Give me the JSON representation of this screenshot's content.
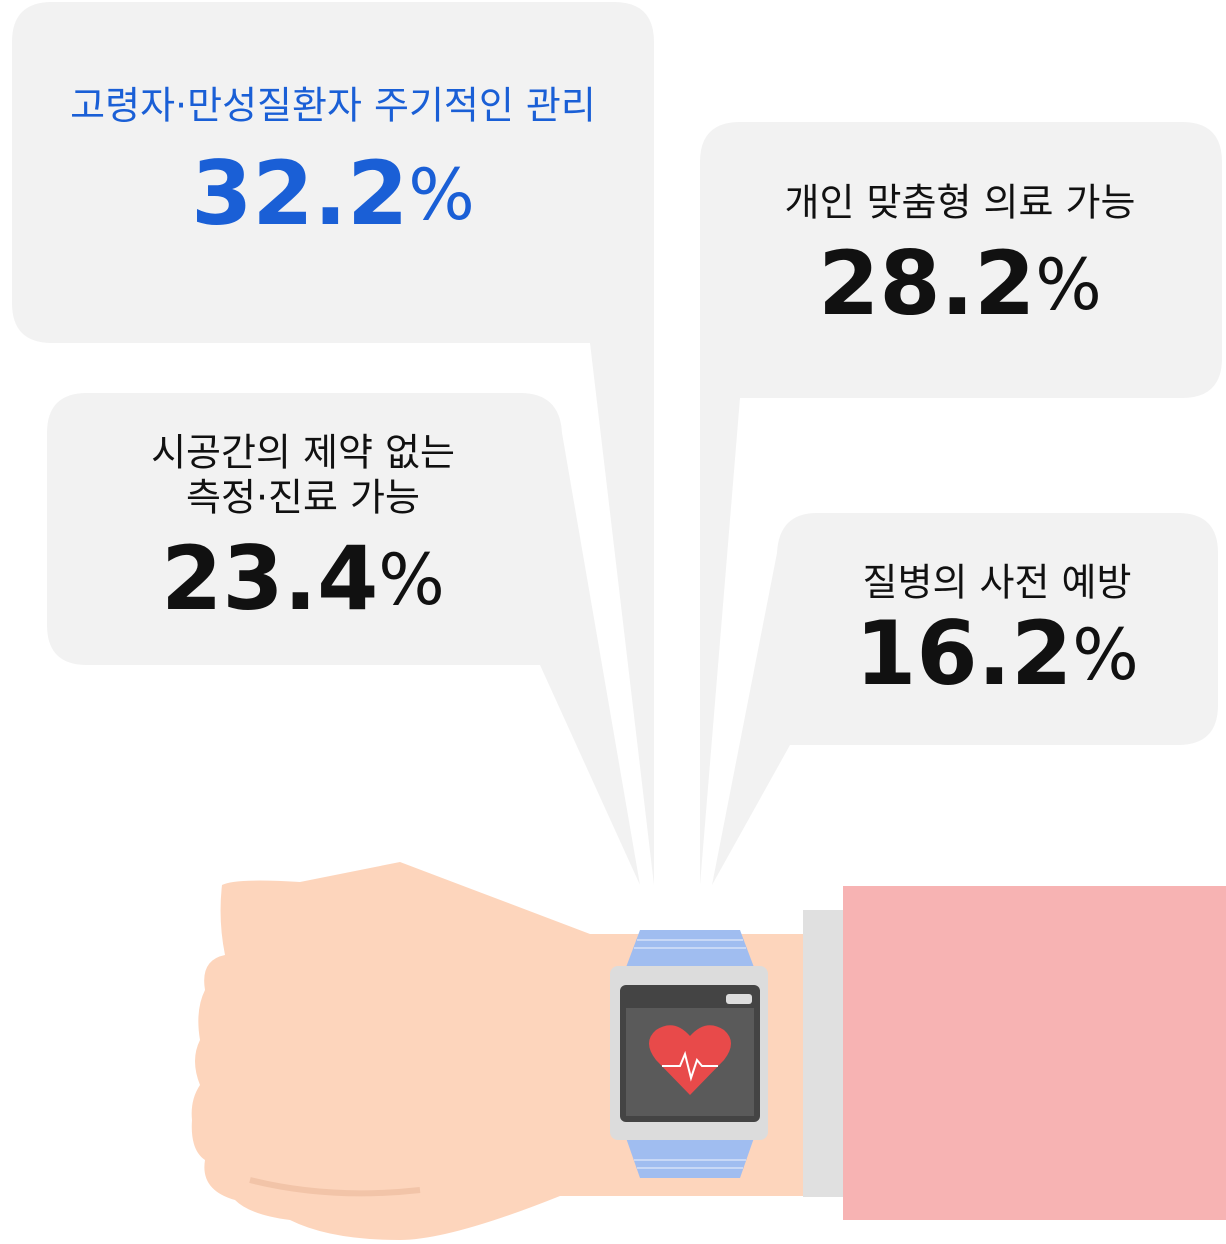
{
  "bubbles": [
    {
      "label": [
        "고령자·만성질환자 주기적인 관리"
      ],
      "value": 32.2,
      "unit": "%"
    },
    {
      "label": [
        "시공간의 제약 없는",
        "측정·진료 가능"
      ],
      "value": 23.4,
      "unit": "%"
    },
    {
      "label": [
        "개인 맞춤형 의료 가능"
      ],
      "value": 28.2,
      "unit": "%"
    },
    {
      "label": [
        "질병의 사전 예방"
      ],
      "value": 16.2,
      "unit": "%"
    }
  ]
}
